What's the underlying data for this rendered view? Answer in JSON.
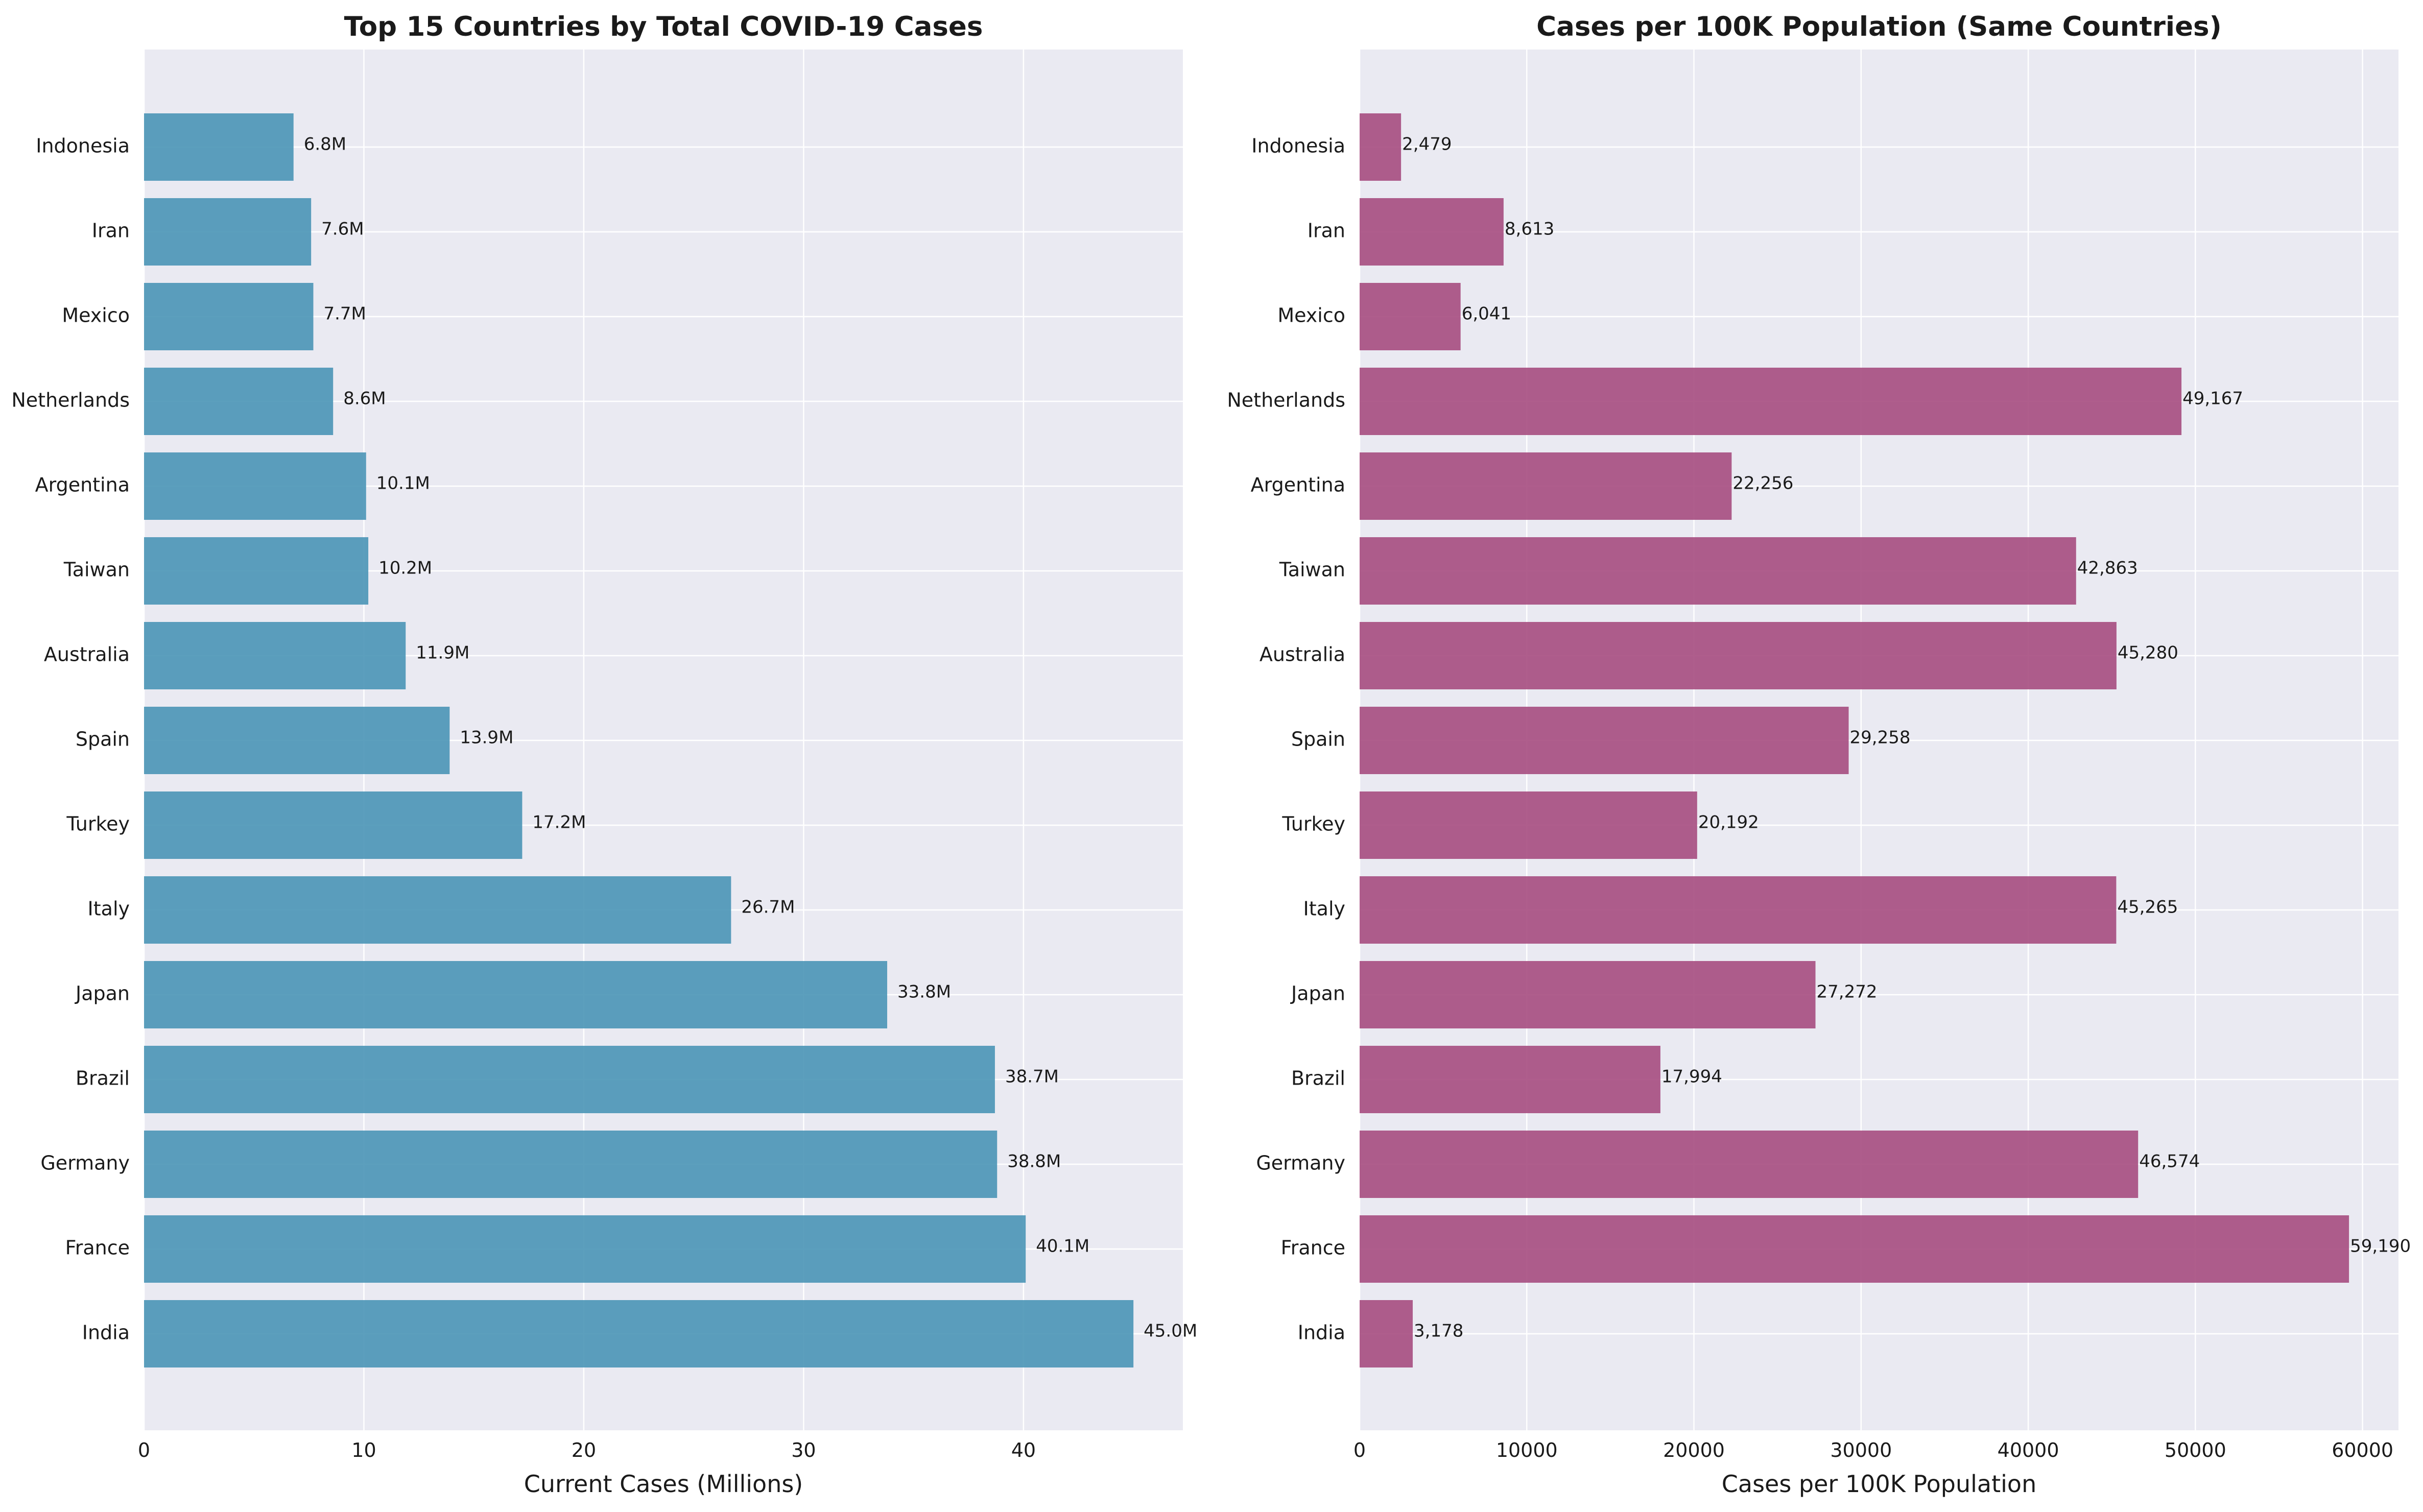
{
  "chart_data": [
    {
      "type": "bar",
      "orientation": "horizontal",
      "title": "Top 15 Countries by Total COVID-19 Cases",
      "xlabel": "Current Cases (Millions)",
      "ylabel": "",
      "categories": [
        "India",
        "France",
        "Germany",
        "Brazil",
        "Japan",
        "Italy",
        "Turkey",
        "Spain",
        "Australia",
        "Taiwan",
        "Argentina",
        "Netherlands",
        "Mexico",
        "Iran",
        "Indonesia"
      ],
      "values": [
        45.0,
        40.1,
        38.8,
        38.7,
        33.8,
        26.7,
        17.2,
        13.9,
        11.9,
        10.2,
        10.1,
        8.6,
        7.7,
        7.6,
        6.8
      ],
      "data_labels": [
        "45.0M",
        "40.1M",
        "38.8M",
        "38.7M",
        "33.8M",
        "26.7M",
        "17.2M",
        "13.9M",
        "11.9M",
        "10.2M",
        "10.1M",
        "8.6M",
        "7.7M",
        "7.6M",
        "6.8M"
      ],
      "xlim": [
        0,
        47.25
      ],
      "xticks": [
        0,
        10,
        20,
        30,
        40
      ],
      "xtick_labels": [
        "0",
        "10",
        "20",
        "30",
        "40"
      ],
      "grid": true,
      "bar_color": "#4a95b6",
      "background_color": "#eaeaf2"
    },
    {
      "type": "bar",
      "orientation": "horizontal",
      "title": "Cases per 100K Population (Same Countries)",
      "xlabel": "Cases per 100K Population",
      "ylabel": "",
      "categories": [
        "India",
        "France",
        "Germany",
        "Brazil",
        "Japan",
        "Italy",
        "Turkey",
        "Spain",
        "Australia",
        "Taiwan",
        "Argentina",
        "Netherlands",
        "Mexico",
        "Iran",
        "Indonesia"
      ],
      "values": [
        3178,
        59190,
        46574,
        17994,
        27272,
        45265,
        20192,
        29258,
        45280,
        42863,
        22256,
        49167,
        6041,
        8613,
        2479
      ],
      "data_labels": [
        "3,178",
        "59,190",
        "46,574",
        "17,994",
        "27,272",
        "45,265",
        "20,192",
        "29,258",
        "45,280",
        "42,863",
        "22,256",
        "49,167",
        "6,041",
        "8,613",
        "2,479"
      ],
      "xlim": [
        0,
        62150
      ],
      "xticks": [
        0,
        10000,
        20000,
        30000,
        40000,
        50000,
        60000
      ],
      "xtick_labels": [
        "0",
        "10000",
        "20000",
        "30000",
        "40000",
        "50000",
        "60000"
      ],
      "grid": true,
      "bar_color": "#a64d7f",
      "background_color": "#eaeaf2"
    }
  ]
}
